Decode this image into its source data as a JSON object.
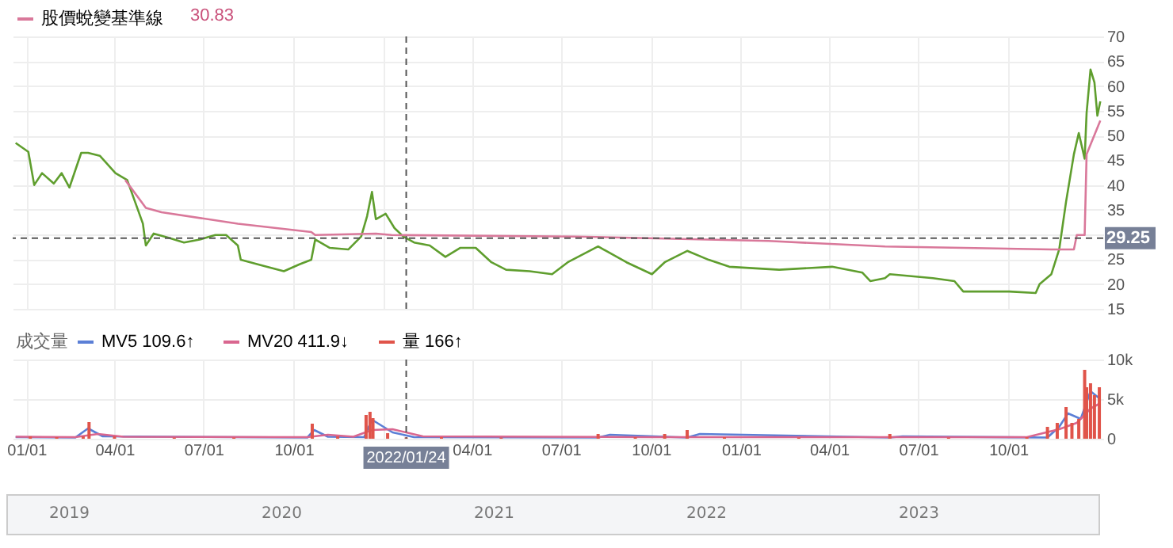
{
  "chart_data": [
    {
      "type": "line",
      "annotations": [
        "30.83"
      ],
      "legend": "top left",
      "grid": true,
      "tick_labels": "y",
      "xlim": [
        "2020-12-18",
        "2024-01-06"
      ],
      "xticks": [
        {
          "value": "2021-01-01",
          "label": null
        },
        {
          "value": "2021-04-01",
          "label": null
        },
        {
          "value": "2021-07-01",
          "label": null
        },
        {
          "value": "2021-10-01",
          "label": null
        },
        {
          "value": "2022-01-01",
          "label": null
        },
        {
          "value": "2022-04-01",
          "label": null
        },
        {
          "value": "2022-07-01",
          "label": null
        },
        {
          "value": "2022-10-01",
          "label": null
        },
        {
          "value": "2023-01-01",
          "label": null
        },
        {
          "value": "2023-04-01",
          "label": null
        },
        {
          "value": "2023-07-01",
          "label": null
        },
        {
          "value": "2023-10-01",
          "label": null
        }
      ],
      "ylim": [
        15,
        70
      ],
      "yticks": [
        15,
        20,
        25,
        {
          "value": 30,
          "label": null
        },
        35,
        40,
        45,
        50,
        55,
        60,
        65,
        70
      ],
      "ref_lines": [
        {
          "axis": "y",
          "value": 29.25,
          "label": "29.25",
          "color": "#555555",
          "line_style": "dashed"
        },
        {
          "axis": "x",
          "value": "2022-01-24",
          "label": null,
          "color": "#555555",
          "line_style": "dashed"
        }
      ],
      "series": [
        {
          "color": "#5f9e2e",
          "x": [
            "2020-12-21",
            "2021-01-03",
            "2021-01-09",
            "2021-01-17",
            "2021-01-29",
            "2021-02-06",
            "2021-02-14",
            "2021-02-26",
            "2021-03-05",
            "2021-03-17",
            "2021-04-02",
            "2021-04-14",
            "2021-04-22",
            "2021-04-30",
            "2021-05-03",
            "2021-05-11",
            "2021-05-27",
            "2021-06-11",
            "2021-06-27",
            "2021-07-13",
            "2021-07-24",
            "2021-08-05",
            "2021-08-08",
            "2021-08-29",
            "2021-09-21",
            "2021-10-07",
            "2021-10-19",
            "2021-10-23",
            "2021-11-07",
            "2021-11-26",
            "2021-12-09",
            "2021-12-15",
            "2021-12-20",
            "2021-12-24",
            "2022-01-03",
            "2022-01-12",
            "2022-01-21",
            "2022-02-01",
            "2022-02-17",
            "2022-03-05",
            "2022-03-20",
            "2022-04-05",
            "2022-04-21",
            "2022-05-06",
            "2022-05-30",
            "2022-06-22",
            "2022-07-08",
            "2022-08-08",
            "2022-09-06",
            "2022-10-02",
            "2022-10-15",
            "2022-11-07",
            "2022-11-29",
            "2022-12-20",
            "2023-02-09",
            "2023-04-04",
            "2023-05-05",
            "2023-05-13",
            "2023-05-28",
            "2023-06-02",
            "2023-07-16",
            "2023-08-07",
            "2023-08-16",
            "2023-10-02",
            "2023-10-29",
            "2023-11-02",
            "2023-11-14",
            "2023-11-22",
            "2023-11-29",
            "2023-12-07",
            "2023-12-12",
            "2023-12-18",
            "2023-12-20",
            "2023-12-24",
            "2023-12-28",
            "2023-12-31",
            "2024-01-03"
          ],
          "values": [
            48.5,
            46.7,
            40,
            42.4,
            40.3,
            42.4,
            39.5,
            46.5,
            46.5,
            45.9,
            42.4,
            41,
            36.6,
            32.2,
            27.8,
            30.2,
            29.3,
            28.4,
            29,
            29.9,
            29.9,
            27.8,
            24.9,
            23.8,
            22.6,
            24,
            24.9,
            29,
            27.3,
            27,
            29.6,
            33.7,
            38.6,
            33.1,
            34.2,
            31.3,
            29.6,
            28.4,
            27.8,
            25.5,
            27.3,
            27.3,
            24.4,
            22.9,
            22.6,
            22,
            24.4,
            27.6,
            24.4,
            22,
            24.4,
            26.7,
            24.9,
            23.5,
            22.9,
            23.5,
            22.3,
            20.6,
            21.2,
            22,
            21.2,
            20.6,
            18.5,
            18.5,
            18.2,
            20,
            22,
            27,
            36.6,
            46.2,
            50.5,
            45.3,
            54.6,
            63.3,
            60.7,
            54,
            56.9
          ]
        },
        {
          "name": "股價蛻變基準線",
          "color": "#d9789a",
          "x": [
            "2021-04-12",
            "2021-05-03",
            "2021-05-19",
            "2021-08-05",
            "2021-10-19",
            "2021-10-23",
            "2021-12-24",
            "2022-01-09",
            "2022-07-16",
            "2023-01-29",
            "2023-05-28",
            "2023-11-14",
            "2023-12-07",
            "2023-12-10",
            "2023-12-18",
            "2023-12-20",
            "2024-01-03"
          ],
          "values": [
            41,
            35.4,
            34.5,
            32.2,
            30.5,
            29.9,
            30.2,
            29.9,
            29.6,
            28.7,
            27.6,
            27,
            27,
            29.9,
            29.9,
            46.2,
            53
          ]
        }
      ]
    },
    {
      "type": "bar",
      "legend_title": "成交量",
      "legend": "top left",
      "grid": true,
      "annotations": [
        "2019",
        "2020",
        "2021",
        "2022",
        "2023"
      ],
      "xlim": [
        "2020-12-18",
        "2024-01-06"
      ],
      "xticks": [
        {
          "value": "2021-01-01",
          "label": "01/01"
        },
        {
          "value": "2021-04-01",
          "label": "04/01"
        },
        {
          "value": "2021-07-01",
          "label": "07/01"
        },
        {
          "value": "2021-10-01",
          "label": "10/01"
        },
        {
          "value": "2022-01-01",
          "label": null
        },
        {
          "value": "2022-04-01",
          "label": "04/01"
        },
        {
          "value": "2022-07-01",
          "label": "07/01"
        },
        {
          "value": "2022-10-01",
          "label": "10/01"
        },
        {
          "value": "2023-01-01",
          "label": "01/01"
        },
        {
          "value": "2023-04-01",
          "label": "04/01"
        },
        {
          "value": "2023-07-01",
          "label": "07/01"
        },
        {
          "value": "2023-10-01",
          "label": "10/01"
        }
      ],
      "ylim": [
        0,
        10000
      ],
      "yticks": [
        0,
        {
          "value": 5000,
          "label": "5k"
        },
        {
          "value": 10000,
          "label": "10k"
        }
      ],
      "ref_lines": [
        {
          "axis": "x",
          "value": "2022-01-24",
          "label": "2022/01/24",
          "color": "#555555",
          "line_style": "dashed"
        }
      ],
      "series": [
        {
          "name": "MV5 109.6↑",
          "type": "line",
          "color": "#5b7fd6",
          "x": [
            "2020-12-21",
            "2021-02-20",
            "2021-03-05",
            "2021-03-20",
            "2021-10-15",
            "2021-10-22",
            "2021-11-05",
            "2021-12-12",
            "2021-12-20",
            "2022-01-10",
            "2022-02-01",
            "2022-08-08",
            "2022-08-20",
            "2022-11-07",
            "2022-11-20",
            "2023-06-02",
            "2023-06-15",
            "2023-11-10",
            "2023-11-22",
            "2023-12-01",
            "2023-12-14",
            "2023-12-24",
            "2024-01-03"
          ],
          "values": [
            200,
            150,
            1300,
            300,
            150,
            1100,
            250,
            200,
            2400,
            800,
            200,
            150,
            500,
            150,
            600,
            150,
            300,
            150,
            1500,
            3200,
            2500,
            6000,
            5000
          ]
        },
        {
          "name": "MV20 411.9↓",
          "type": "line",
          "color": "#d9668f",
          "x": [
            "2020-12-21",
            "2021-02-20",
            "2021-03-15",
            "2021-04-10",
            "2021-10-15",
            "2021-11-05",
            "2021-12-01",
            "2021-12-20",
            "2022-01-10",
            "2022-02-10",
            "2022-10-01",
            "2023-10-20",
            "2023-11-22",
            "2023-12-10",
            "2023-12-24",
            "2024-01-03"
          ],
          "values": [
            250,
            200,
            600,
            250,
            200,
            500,
            250,
            1100,
            1200,
            300,
            200,
            200,
            1200,
            2000,
            3800,
            4500
          ]
        },
        {
          "name": "量 166↑",
          "color": "#e0544a",
          "x": [
            "2021-01-05",
            "2021-02-01",
            "2021-02-28",
            "2021-03-06",
            "2021-04-01",
            "2021-06-01",
            "2021-08-01",
            "2021-10-20",
            "2021-11-15",
            "2021-12-14",
            "2021-12-18",
            "2021-12-21",
            "2022-01-05",
            "2022-01-24",
            "2022-03-01",
            "2022-05-01",
            "2022-08-08",
            "2022-09-15",
            "2022-10-15",
            "2022-11-07",
            "2022-12-15",
            "2023-03-01",
            "2023-06-02",
            "2023-08-01",
            "2023-10-20",
            "2023-11-10",
            "2023-11-20",
            "2023-11-29",
            "2023-12-05",
            "2023-12-12",
            "2023-12-18",
            "2023-12-20",
            "2023-12-24",
            "2023-12-28",
            "2024-01-02"
          ],
          "values": [
            300,
            200,
            300,
            2100,
            300,
            150,
            150,
            1900,
            300,
            3000,
            3400,
            2600,
            700,
            166,
            200,
            150,
            600,
            200,
            600,
            1100,
            200,
            150,
            600,
            150,
            200,
            1500,
            2000,
            4000,
            2000,
            2500,
            8700,
            6500,
            7000,
            5500,
            6500
          ]
        }
      ]
    }
  ]
}
